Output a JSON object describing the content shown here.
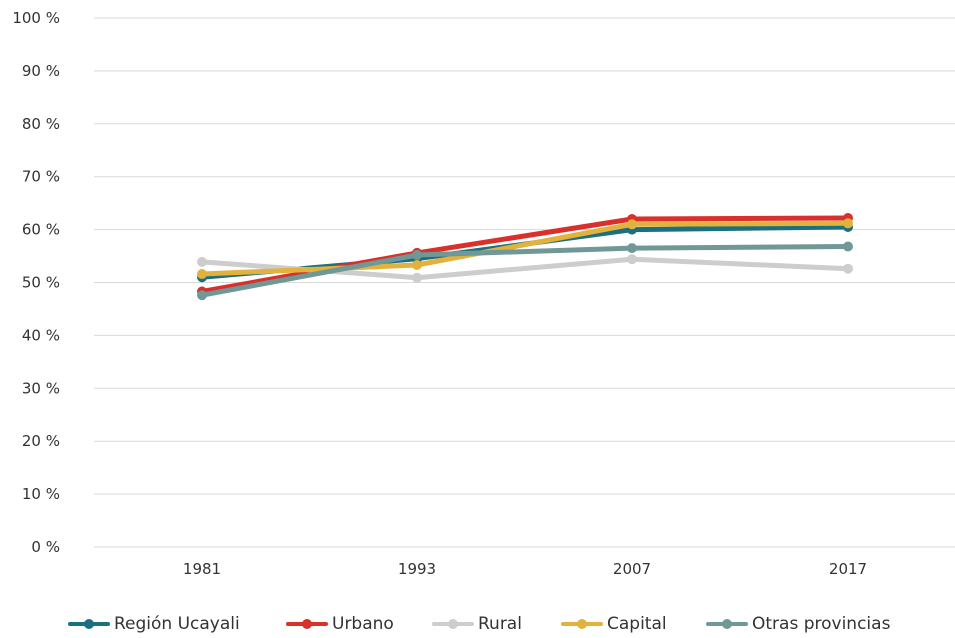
{
  "chart_data": {
    "type": "line",
    "title": "",
    "xlabel": "",
    "ylabel": "",
    "categories": [
      "1981",
      "1993",
      "2007",
      "2017"
    ],
    "ylim": [
      0,
      100
    ],
    "yticks": [
      "0 %",
      "10 %",
      "20 %",
      "30 %",
      "40 %",
      "50 %",
      "60 %",
      "70 %",
      "80 %",
      "90 %",
      "100 %"
    ],
    "grid": true,
    "legend_position": "bottom",
    "series": [
      {
        "name": "Región Ucayali",
        "color": "#1a6f80",
        "values": [
          51.0,
          54.5,
          60.0,
          60.5
        ]
      },
      {
        "name": "Urbano",
        "color": "#d9302b",
        "values": [
          48.3,
          55.6,
          62.0,
          62.2
        ]
      },
      {
        "name": "Rural",
        "color": "#cdcdcd",
        "values": [
          53.9,
          50.9,
          54.4,
          52.6
        ]
      },
      {
        "name": "Capital",
        "color": "#e3b23c",
        "values": [
          51.6,
          53.3,
          61.0,
          61.2
        ]
      },
      {
        "name": "Otras provincias",
        "color": "#6f9896",
        "values": [
          47.6,
          55.2,
          56.5,
          56.8
        ]
      }
    ]
  }
}
